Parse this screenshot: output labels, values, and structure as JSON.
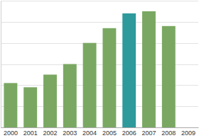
{
  "chart_data": {
    "type": "bar",
    "categories": [
      "2000",
      "2001",
      "2002",
      "2003",
      "2004",
      "2005",
      "2006",
      "2007",
      "2008",
      "2009"
    ],
    "values": [
      2.1,
      1.9,
      2.5,
      3.0,
      4.0,
      4.7,
      5.4,
      5.5,
      4.8,
      null
    ],
    "colors": [
      "#7aa862",
      "#7aa862",
      "#7aa862",
      "#7aa862",
      "#7aa862",
      "#7aa862",
      "#2e9a9c",
      "#7aa862",
      "#7aa862",
      "#7aa862"
    ],
    "ylim": [
      0,
      6
    ],
    "yticks": [
      0,
      1,
      2,
      3,
      4,
      5,
      6
    ],
    "grid": true,
    "tick_labels": "x"
  }
}
